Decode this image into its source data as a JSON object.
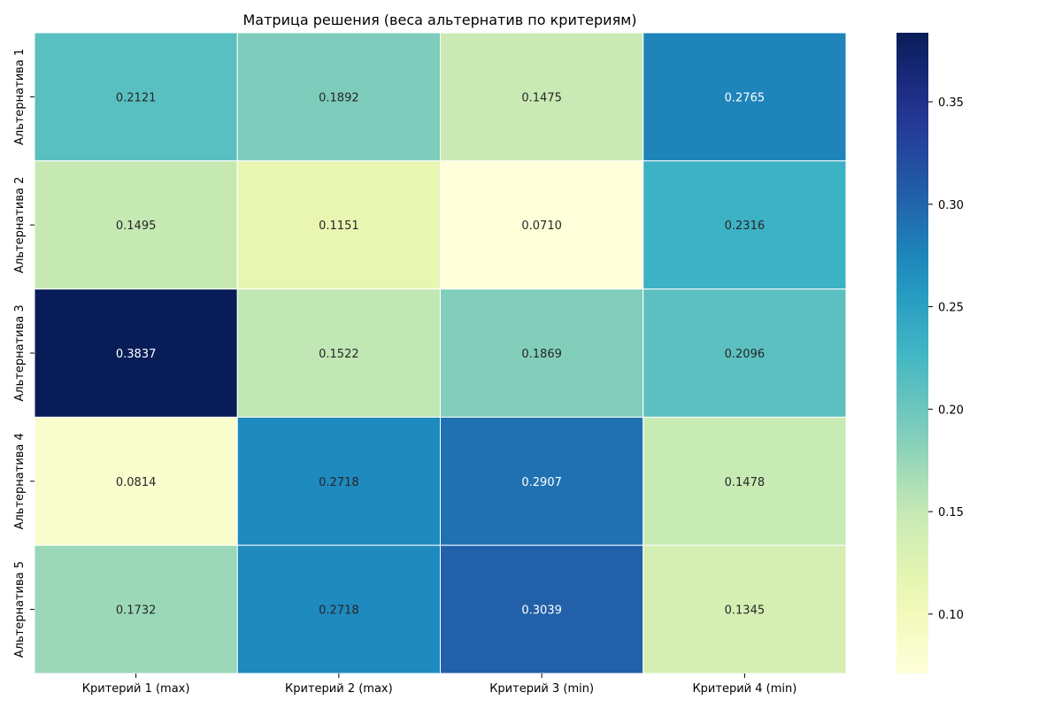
{
  "chart_data": {
    "type": "heatmap",
    "title": "Матрица решения (веса альтернатив по критериям)",
    "xlabel": "",
    "ylabel": "",
    "x_categories": [
      "Критерий 1 (max)",
      "Критерий 2 (max)",
      "Критерий 3 (min)",
      "Критерий 4 (min)"
    ],
    "y_categories": [
      "Альтернатива 1",
      "Альтернатива 2",
      "Альтернатива 3",
      "Альтернатива 4",
      "Альтернатива 5"
    ],
    "values": [
      [
        0.2121,
        0.1892,
        0.1475,
        0.2765
      ],
      [
        0.1495,
        0.1151,
        0.071,
        0.2316
      ],
      [
        0.3837,
        0.1522,
        0.1869,
        0.2096
      ],
      [
        0.0814,
        0.2718,
        0.2907,
        0.1478
      ],
      [
        0.1732,
        0.2718,
        0.3039,
        0.1345
      ]
    ],
    "value_labels": [
      [
        "0.2121",
        "0.1892",
        "0.1475",
        "0.2765"
      ],
      [
        "0.1495",
        "0.1151",
        "0.0710",
        "0.2316"
      ],
      [
        "0.3837",
        "0.1522",
        "0.1869",
        "0.2096"
      ],
      [
        "0.0814",
        "0.2718",
        "0.2907",
        "0.1478"
      ],
      [
        "0.1732",
        "0.2718",
        "0.3039",
        "0.1345"
      ]
    ],
    "colormap": "YlGnBu",
    "colorbar": {
      "range": [
        0.071,
        0.3837
      ],
      "ticks": [
        0.1,
        0.15,
        0.2,
        0.25,
        0.3,
        0.35
      ],
      "tick_labels": [
        "0.10",
        "0.15",
        "0.20",
        "0.25",
        "0.30",
        "0.35"
      ]
    },
    "grid": false,
    "legend": "colorbar-right"
  }
}
